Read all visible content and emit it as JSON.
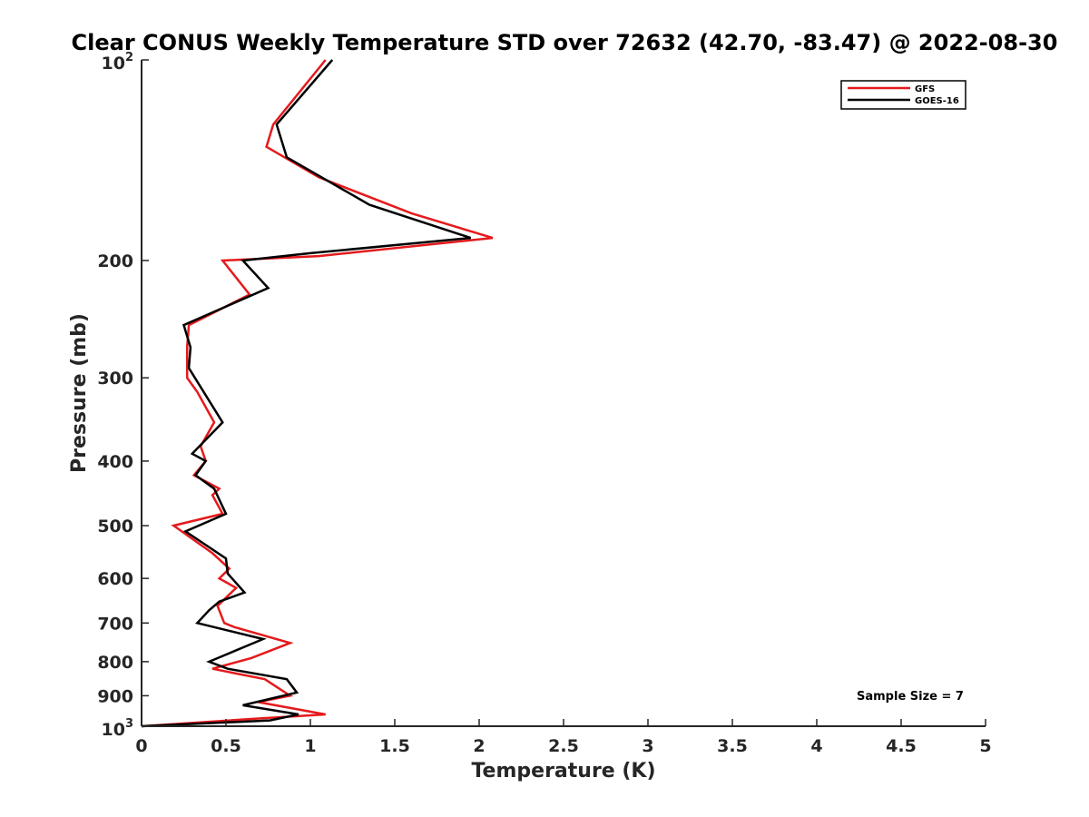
{
  "chart_data": {
    "type": "line",
    "title": "Clear CONUS Weekly Temperature STD over 72632 (42.70, -83.47) @ 2022-08-30",
    "xlabel": "Temperature (K)",
    "ylabel": "Pressure (mb)",
    "xlim": [
      0,
      5
    ],
    "ylim": [
      100,
      1000
    ],
    "y_scale": "log",
    "y_reversed": true,
    "grid": false,
    "legend_position": "top-right",
    "x_ticks": [
      0,
      0.5,
      1,
      1.5,
      2,
      2.5,
      3,
      3.5,
      4,
      4.5,
      5
    ],
    "x_tick_labels": [
      "0",
      "0.5",
      "1",
      "1.5",
      "2",
      "2.5",
      "3",
      "3.5",
      "4",
      "4.5",
      "5"
    ],
    "y_ticks": [
      {
        "value": 200,
        "label": "200"
      },
      {
        "value": 300,
        "label": "300"
      },
      {
        "value": 400,
        "label": "400"
      },
      {
        "value": 500,
        "label": "500"
      },
      {
        "value": 600,
        "label": "600"
      },
      {
        "value": 700,
        "label": "700"
      },
      {
        "value": 800,
        "label": "800"
      },
      {
        "value": 900,
        "label": "900"
      }
    ],
    "y_tick_top": {
      "value": 100,
      "base": "10",
      "exp": "2"
    },
    "y_tick_bottom": {
      "value": 1000,
      "base": "10",
      "exp": "3"
    },
    "series": [
      {
        "name": "GFS",
        "color": "#e41a1c",
        "points": [
          [
            1.09,
            100
          ],
          [
            0.78,
            125
          ],
          [
            0.74,
            135
          ],
          [
            1.05,
            150
          ],
          [
            1.6,
            170
          ],
          [
            2.08,
            185
          ],
          [
            1.05,
            197
          ],
          [
            0.48,
            200
          ],
          [
            0.64,
            225
          ],
          [
            0.28,
            250
          ],
          [
            0.27,
            270
          ],
          [
            0.27,
            300
          ],
          [
            0.33,
            315
          ],
          [
            0.43,
            350
          ],
          [
            0.35,
            380
          ],
          [
            0.38,
            400
          ],
          [
            0.31,
            420
          ],
          [
            0.46,
            440
          ],
          [
            0.42,
            450
          ],
          [
            0.48,
            480
          ],
          [
            0.19,
            500
          ],
          [
            0.42,
            550
          ],
          [
            0.52,
            580
          ],
          [
            0.46,
            600
          ],
          [
            0.56,
            620
          ],
          [
            0.45,
            660
          ],
          [
            0.49,
            700
          ],
          [
            0.55,
            710
          ],
          [
            0.88,
            750
          ],
          [
            0.65,
            790
          ],
          [
            0.42,
            820
          ],
          [
            0.73,
            850
          ],
          [
            0.88,
            900
          ],
          [
            0.69,
            920
          ],
          [
            1.09,
            960
          ],
          [
            0.66,
            975
          ],
          [
            0.0,
            1000
          ]
        ]
      },
      {
        "name": "GOES-16",
        "color": "#000000",
        "points": [
          [
            1.13,
            100
          ],
          [
            0.8,
            125
          ],
          [
            0.86,
            140
          ],
          [
            1.35,
            165
          ],
          [
            1.95,
            185
          ],
          [
            1.0,
            195
          ],
          [
            0.6,
            200
          ],
          [
            0.75,
            220
          ],
          [
            0.25,
            250
          ],
          [
            0.29,
            270
          ],
          [
            0.28,
            290
          ],
          [
            0.48,
            350
          ],
          [
            0.3,
            390
          ],
          [
            0.38,
            400
          ],
          [
            0.32,
            420
          ],
          [
            0.43,
            440
          ],
          [
            0.5,
            480
          ],
          [
            0.26,
            510
          ],
          [
            0.5,
            560
          ],
          [
            0.51,
            590
          ],
          [
            0.61,
            630
          ],
          [
            0.46,
            650
          ],
          [
            0.4,
            670
          ],
          [
            0.33,
            700
          ],
          [
            0.72,
            740
          ],
          [
            0.4,
            800
          ],
          [
            0.51,
            820
          ],
          [
            0.86,
            850
          ],
          [
            0.92,
            890
          ],
          [
            0.6,
            930
          ],
          [
            0.93,
            960
          ],
          [
            0.76,
            980
          ],
          [
            0.0,
            1000
          ]
        ]
      }
    ],
    "annotations": [
      "Sample Size = 7"
    ]
  }
}
